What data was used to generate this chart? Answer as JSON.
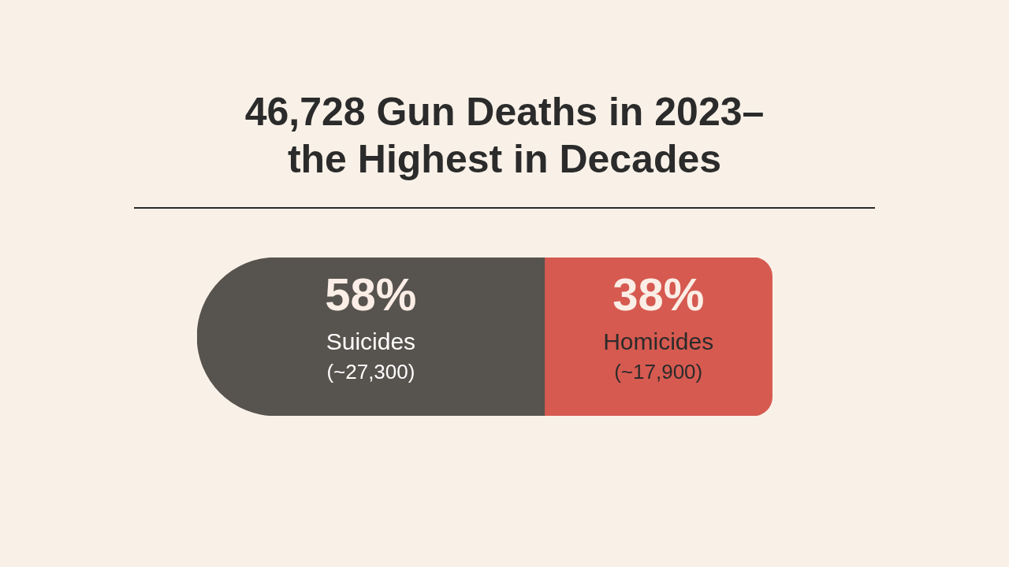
{
  "chart_data": {
    "type": "bar",
    "orientation": "horizontal",
    "stacked": true,
    "title": "46,728 Gun Deaths in 2023–the Highest in Decades",
    "categories": [
      null
    ],
    "series": [
      {
        "name": "Suicides",
        "color": "#57534e",
        "values": [
          58
        ],
        "value_labels": [
          "58%"
        ]
      },
      {
        "name": "Homicides",
        "color": "#d65a50",
        "values": [
          38
        ],
        "value_labels": [
          "38%"
        ]
      }
    ],
    "annotations": [
      "(~27,300)",
      "(~17,900)"
    ]
  }
}
